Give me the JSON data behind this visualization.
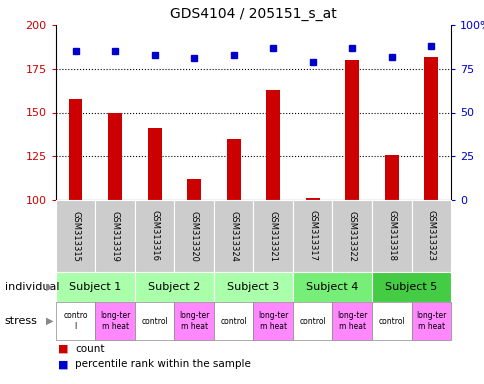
{
  "title": "GDS4104 / 205151_s_at",
  "samples": [
    "GSM313315",
    "GSM313319",
    "GSM313316",
    "GSM313320",
    "GSM313324",
    "GSM313321",
    "GSM313317",
    "GSM313322",
    "GSM313318",
    "GSM313323"
  ],
  "counts": [
    158,
    150,
    141,
    112,
    135,
    163,
    101,
    180,
    126,
    182
  ],
  "percentile_ranks": [
    85,
    85,
    83,
    81,
    83,
    87,
    79,
    87,
    82,
    88
  ],
  "ylim_left": [
    100,
    200
  ],
  "ylim_right": [
    0,
    100
  ],
  "yticks_left": [
    100,
    125,
    150,
    175,
    200
  ],
  "yticks_right": [
    0,
    25,
    50,
    75,
    100
  ],
  "bar_color": "#cc0000",
  "dot_color": "#0000cc",
  "subjects": [
    {
      "label": "Subject 1",
      "cols": [
        0,
        1
      ],
      "color": "#aaffaa"
    },
    {
      "label": "Subject 2",
      "cols": [
        2,
        3
      ],
      "color": "#aaffaa"
    },
    {
      "label": "Subject 3",
      "cols": [
        4,
        5
      ],
      "color": "#aaffaa"
    },
    {
      "label": "Subject 4",
      "cols": [
        6,
        7
      ],
      "color": "#77ee77"
    },
    {
      "label": "Subject 5",
      "cols": [
        8,
        9
      ],
      "color": "#44cc44"
    }
  ],
  "stress": [
    {
      "label": "contro\nl",
      "col": 0,
      "color": "#ffffff"
    },
    {
      "label": "long-ter\nm heat",
      "col": 1,
      "color": "#ff88ff"
    },
    {
      "label": "control",
      "col": 2,
      "color": "#ffffff"
    },
    {
      "label": "long-ter\nm heat",
      "col": 3,
      "color": "#ff88ff"
    },
    {
      "label": "control",
      "col": 4,
      "color": "#ffffff"
    },
    {
      "label": "long-ter\nm heat",
      "col": 5,
      "color": "#ff88ff"
    },
    {
      "label": "control",
      "col": 6,
      "color": "#ffffff"
    },
    {
      "label": "long-ter\nm heat",
      "col": 7,
      "color": "#ff88ff"
    },
    {
      "label": "control",
      "col": 8,
      "color": "#ffffff"
    },
    {
      "label": "long-ter\nm heat",
      "col": 9,
      "color": "#ff88ff"
    }
  ],
  "left_axis_color": "#cc0000",
  "right_axis_color": "#0000cc",
  "tick_bg_color": "#cccccc",
  "individual_label": "individual",
  "stress_label": "stress",
  "gridlines": [
    125,
    150,
    175
  ]
}
